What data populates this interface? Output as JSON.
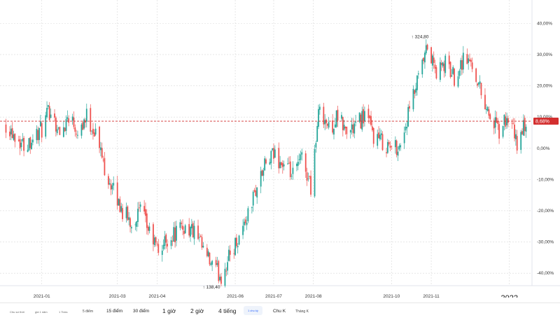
{
  "chart_data": {
    "type": "candlestick",
    "y_unit": "%",
    "ylim": [
      -44,
      43
    ],
    "y_ticks": [
      {
        "value": 40,
        "label": "40,00%"
      },
      {
        "value": 30,
        "label": "30,00%"
      },
      {
        "value": 20,
        "label": "20,00%"
      },
      {
        "value": 10,
        "label": "10,00%"
      },
      {
        "value": 0,
        "label": "0,00%"
      },
      {
        "value": -10,
        "label": "-10,00%"
      },
      {
        "value": -20,
        "label": "-20,00%"
      },
      {
        "value": -30,
        "label": "-30,00%"
      },
      {
        "value": -40,
        "label": "-40,00%"
      }
    ],
    "x_ticks": [
      {
        "label": "2021-01",
        "date": "2021-01-01"
      },
      {
        "label": "2021-03",
        "date": "2021-03-01"
      },
      {
        "label": "2021-04",
        "date": "2021-04-01"
      },
      {
        "label": "2021-06",
        "date": "2021-06-01"
      },
      {
        "label": "2021-07",
        "date": "2021-07-01"
      },
      {
        "label": "2021-08",
        "date": "2021-08-01"
      },
      {
        "label": "2021-10",
        "date": "2021-10-01"
      },
      {
        "label": "2021-11",
        "date": "2021-11-01"
      },
      {
        "label": "2022",
        "date": "2022-01-01"
      }
    ],
    "last_value": 8.68,
    "last_value_label": "8,68%",
    "high_annotation": {
      "label": "324,80",
      "value": 35.5,
      "date": "2021-10-12"
    },
    "low_annotation": {
      "label": "138,40",
      "value": -42.0,
      "date": "2021-04-30"
    },
    "grid": true,
    "up_color": "#26a69a",
    "down_color": "#ef5350",
    "last_line_color": "#d32f2f",
    "series": [
      {
        "date": "2020-12-04",
        "close": 8.0
      },
      {
        "date": "2020-12-18",
        "close": 1.0
      },
      {
        "date": "2021-01-01",
        "close": 6.0
      },
      {
        "date": "2021-01-08",
        "close": 13.0
      },
      {
        "date": "2021-01-15",
        "close": 4.0
      },
      {
        "date": "2021-01-22",
        "close": 11.0
      },
      {
        "date": "2021-01-29",
        "close": 6.0
      },
      {
        "date": "2021-02-05",
        "close": 10.0
      },
      {
        "date": "2021-02-12",
        "close": 5.0
      },
      {
        "date": "2021-02-19",
        "close": -6.0
      },
      {
        "date": "2021-02-26",
        "close": -14.0
      },
      {
        "date": "2021-03-05",
        "close": -20.0
      },
      {
        "date": "2021-03-12",
        "close": -24.0
      },
      {
        "date": "2021-03-19",
        "close": -20.0
      },
      {
        "date": "2021-03-26",
        "close": -27.0
      },
      {
        "date": "2021-04-02",
        "close": -33.0
      },
      {
        "date": "2021-04-09",
        "close": -29.0
      },
      {
        "date": "2021-04-16",
        "close": -27.0
      },
      {
        "date": "2021-04-23",
        "close": -25.0
      },
      {
        "date": "2021-04-30",
        "close": -27.0
      },
      {
        "date": "2021-05-07",
        "close": -33.0
      },
      {
        "date": "2021-05-14",
        "close": -38.0
      },
      {
        "date": "2021-05-21",
        "close": -41.0
      },
      {
        "date": "2021-05-28",
        "close": -34.0
      },
      {
        "date": "2021-06-04",
        "close": -28.0
      },
      {
        "date": "2021-06-11",
        "close": -21.0
      },
      {
        "date": "2021-06-18",
        "close": -12.0
      },
      {
        "date": "2021-06-25",
        "close": -5.0
      },
      {
        "date": "2021-07-02",
        "close": -2.0
      },
      {
        "date": "2021-07-09",
        "close": -6.0
      },
      {
        "date": "2021-07-16",
        "close": -9.0
      },
      {
        "date": "2021-07-23",
        "close": -3.0
      },
      {
        "date": "2021-07-30",
        "close": -12.0
      },
      {
        "date": "2021-08-06",
        "close": 14.0
      },
      {
        "date": "2021-08-13",
        "close": 6.0
      },
      {
        "date": "2021-08-20",
        "close": 10.0
      },
      {
        "date": "2021-08-27",
        "close": 5.0
      },
      {
        "date": "2021-09-03",
        "close": 7.0
      },
      {
        "date": "2021-09-10",
        "close": 11.0
      },
      {
        "date": "2021-09-17",
        "close": 4.0
      },
      {
        "date": "2021-09-24",
        "close": 2.0
      },
      {
        "date": "2021-10-01",
        "close": 0.0
      },
      {
        "date": "2021-10-08",
        "close": 1.0
      },
      {
        "date": "2021-10-15",
        "close": 12.0
      },
      {
        "date": "2021-10-22",
        "close": 22.0
      },
      {
        "date": "2021-10-29",
        "close": 32.0
      },
      {
        "date": "2021-11-05",
        "close": 24.0
      },
      {
        "date": "2021-11-12",
        "close": 27.0
      },
      {
        "date": "2021-11-19",
        "close": 23.0
      },
      {
        "date": "2021-11-26",
        "close": 29.0
      },
      {
        "date": "2021-12-03",
        "close": 27.0
      },
      {
        "date": "2021-12-10",
        "close": 18.0
      },
      {
        "date": "2021-12-17",
        "close": 10.0
      },
      {
        "date": "2021-12-24",
        "close": 5.0
      },
      {
        "date": "2021-12-31",
        "close": 10.0
      },
      {
        "date": "2022-01-07",
        "close": 1.0
      },
      {
        "date": "2022-01-14",
        "close": 8.68
      }
    ]
  },
  "toolbar": {
    "items": [
      {
        "label": "Chu sơ thời",
        "size": "tiny"
      },
      {
        "label": "giá 1 năm",
        "size": "tiny"
      },
      {
        "label": "1 Ticks",
        "size": "tiny"
      },
      {
        "label": "5 điểm",
        "size": "small"
      },
      {
        "label": "15 điểm",
        "size": "mid"
      },
      {
        "label": "30 điểm",
        "size": "mid"
      },
      {
        "label": "1 giờ",
        "size": "big"
      },
      {
        "label": "2 giờ",
        "size": "big"
      },
      {
        "label": "4 tiếng",
        "size": "big"
      },
      {
        "label": "1 chu kỳ",
        "size": "active"
      },
      {
        "label": "Chu K",
        "size": "mid"
      },
      {
        "label": "Tháng K",
        "size": "small"
      }
    ]
  }
}
